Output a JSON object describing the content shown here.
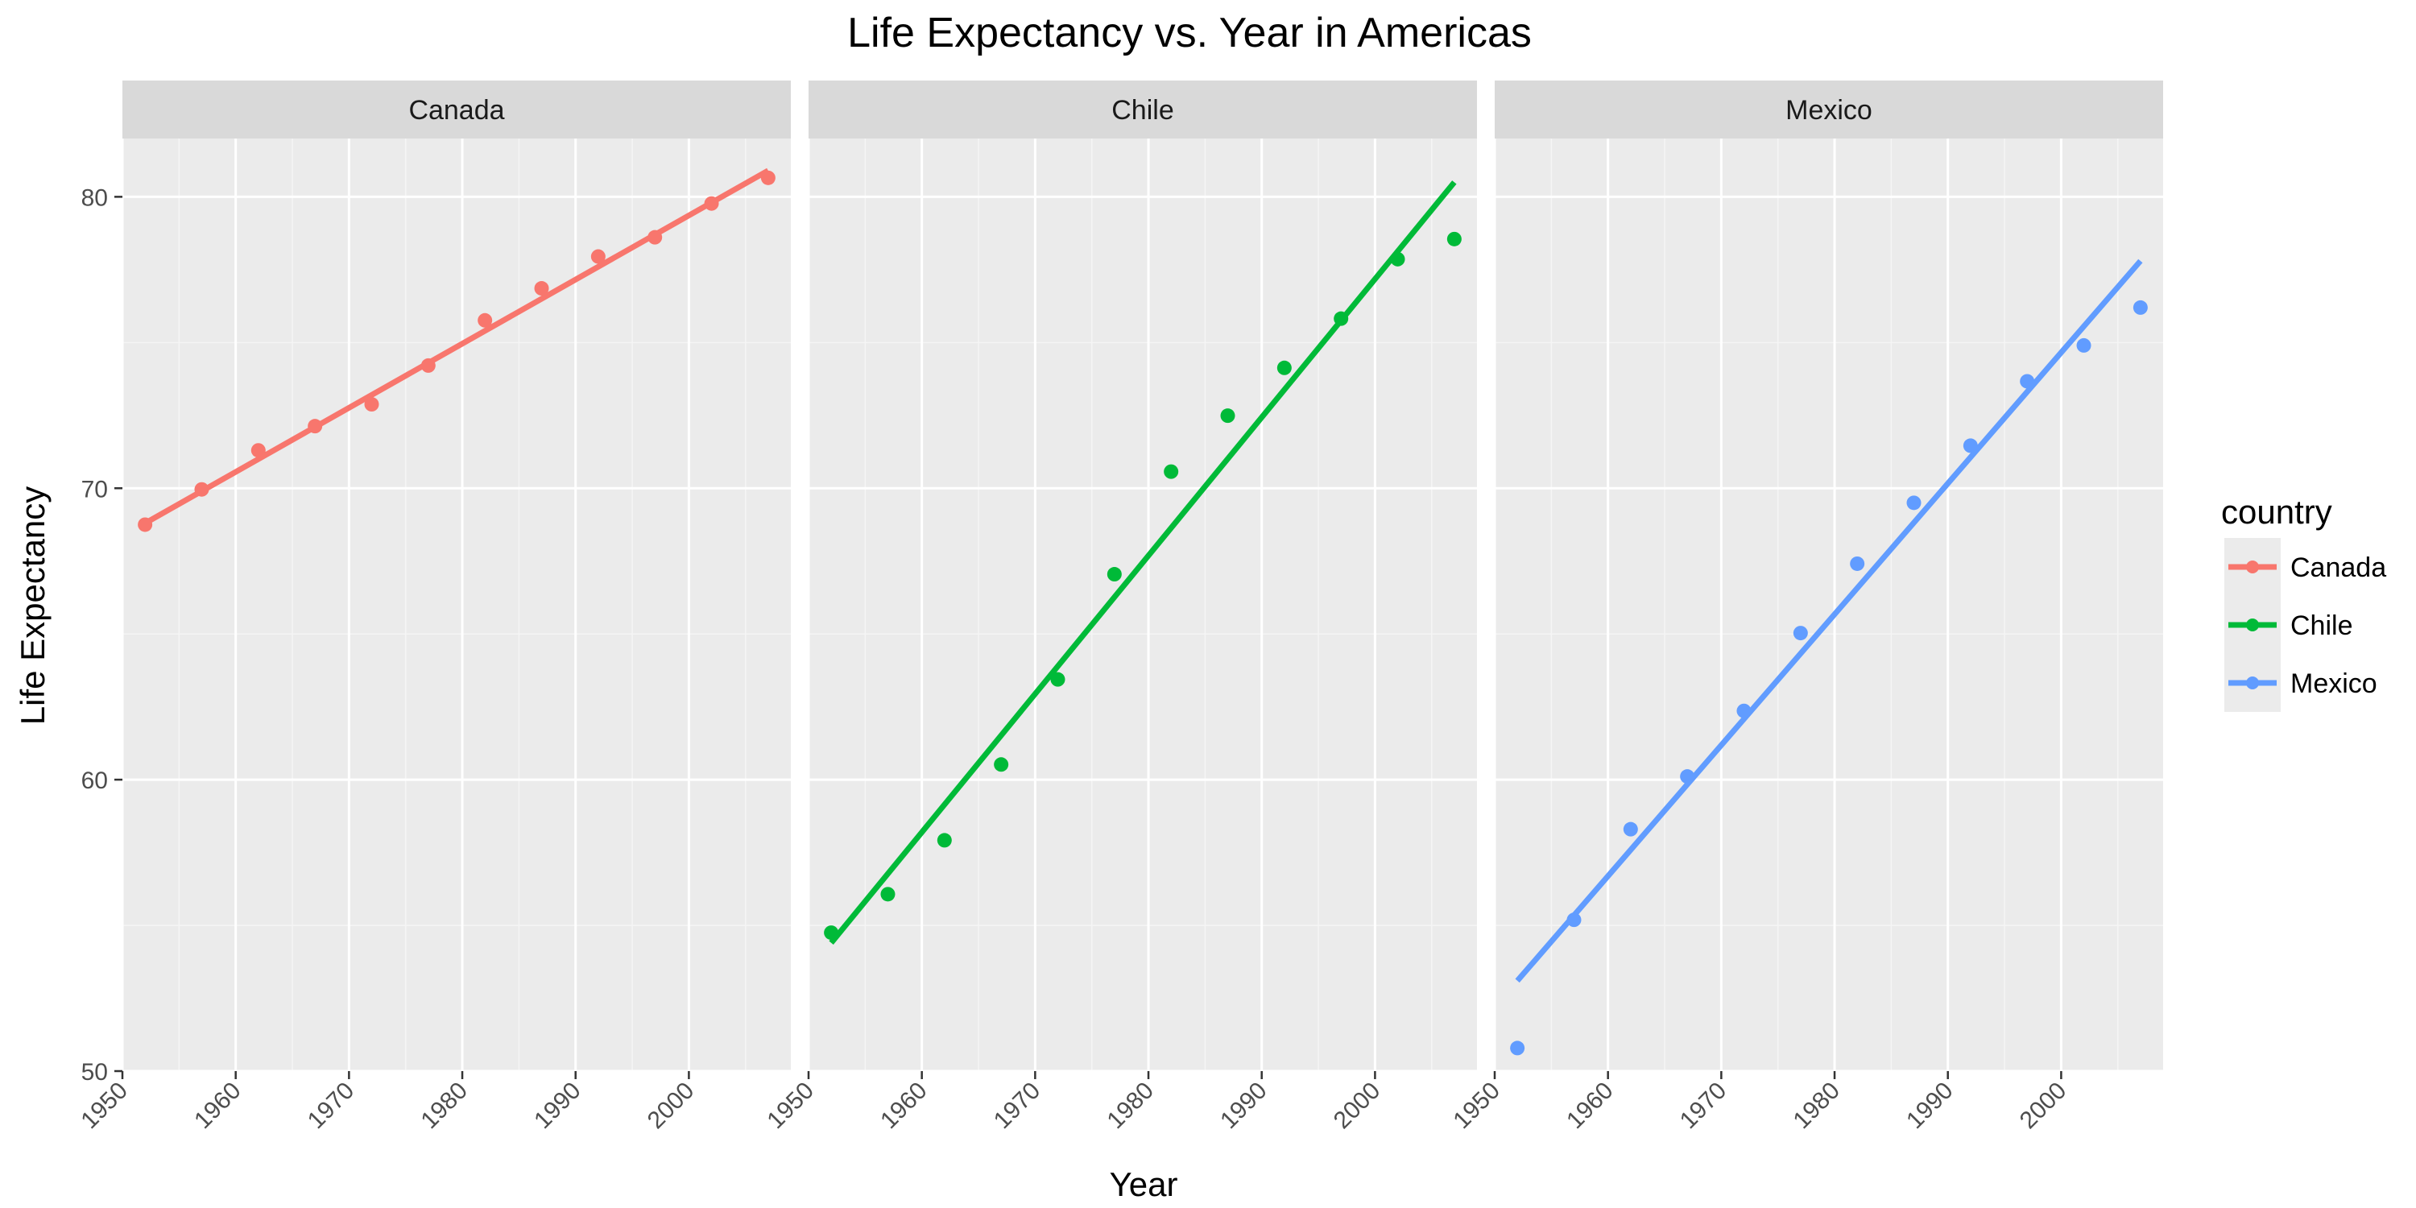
{
  "chart_data": {
    "type": "line",
    "title": "Life Expectancy vs. Year in Americas",
    "xlabel": "Year",
    "ylabel": "Life Expectancy",
    "xlim": [
      1950,
      2009
    ],
    "ylim": [
      50,
      82
    ],
    "x_ticks": [
      1950,
      1960,
      1970,
      1980,
      1990,
      2000
    ],
    "y_ticks": [
      50,
      60,
      70,
      80
    ],
    "grid": true,
    "legend": {
      "title": "country",
      "position": "right"
    },
    "facets": [
      "Canada",
      "Chile",
      "Mexico"
    ],
    "x": [
      1952,
      1957,
      1962,
      1967,
      1972,
      1977,
      1982,
      1987,
      1992,
      1997,
      2002,
      2007
    ],
    "series": [
      {
        "name": "Canada",
        "color": "#F8766D",
        "values": [
          68.75,
          69.96,
          71.3,
          72.13,
          72.88,
          74.21,
          75.76,
          76.86,
          77.95,
          78.61,
          79.77,
          80.65
        ],
        "fit": [
          [
            1952,
            68.8
          ],
          [
            2007,
            80.9
          ]
        ]
      },
      {
        "name": "Chile",
        "color": "#00BA38",
        "values": [
          54.75,
          56.07,
          57.92,
          60.52,
          63.44,
          67.05,
          70.57,
          72.49,
          74.13,
          75.82,
          77.86,
          78.55
        ],
        "fit": [
          [
            1952,
            54.4
          ],
          [
            2007,
            80.5
          ]
        ]
      },
      {
        "name": "Mexico",
        "color": "#619CFF",
        "values": [
          50.79,
          55.19,
          58.3,
          60.11,
          62.36,
          65.03,
          67.41,
          69.5,
          71.46,
          73.67,
          74.9,
          76.2
        ],
        "fit": [
          [
            1952,
            53.1
          ],
          [
            2007,
            77.8
          ]
        ]
      }
    ]
  }
}
